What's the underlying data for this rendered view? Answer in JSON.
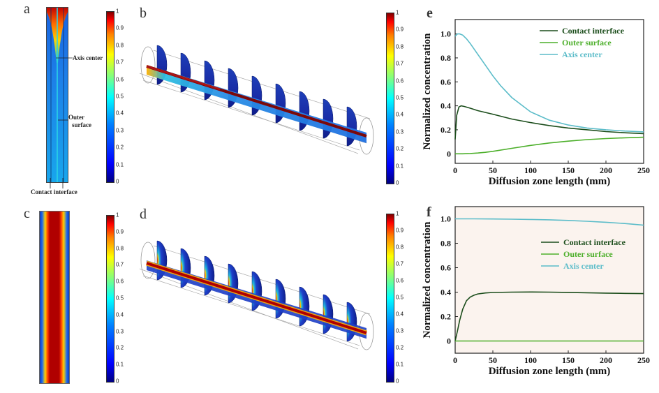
{
  "panels": {
    "a": {
      "letter": "a",
      "annotations": {
        "axis_center": "Axis center",
        "outer_surface_1": "Outer",
        "outer_surface_2": "surface",
        "contact_interface": "Contact interface"
      }
    },
    "b": {
      "letter": "b"
    },
    "c": {
      "letter": "c"
    },
    "d": {
      "letter": "d"
    },
    "e": {
      "letter": "e"
    },
    "f": {
      "letter": "f"
    }
  },
  "colorbar": {
    "ticks": [
      "0",
      "0.1",
      "0.2",
      "0.3",
      "0.4",
      "0.5",
      "0.6",
      "0.7",
      "0.8",
      "0.9",
      "1"
    ]
  },
  "colors": {
    "contact_interface": "#1b4d1b",
    "outer_surface": "#4caf2a",
    "axis_center": "#5bbcc9",
    "panel_f_background": "#fbf3ee"
  },
  "chart_data": [
    {
      "id": "e",
      "type": "line",
      "xlabel": "Diffusion zone length (mm)",
      "ylabel": "Normalized concentration",
      "xlim": [
        0,
        250
      ],
      "ylim": [
        -0.08,
        1.12
      ],
      "xticks": [
        "0",
        "50",
        "100",
        "150",
        "200",
        "250"
      ],
      "yticks": [
        "0",
        "0.2",
        "0.4",
        "0.6",
        "0.8",
        "1.0"
      ],
      "legend_position": "top-right",
      "series": [
        {
          "name": "Contact interface",
          "x": [
            0,
            2,
            5,
            8,
            12,
            20,
            30,
            50,
            75,
            100,
            125,
            150,
            175,
            200,
            225,
            250
          ],
          "y": [
            0.12,
            0.32,
            0.39,
            0.4,
            0.395,
            0.38,
            0.36,
            0.33,
            0.29,
            0.26,
            0.235,
            0.215,
            0.2,
            0.185,
            0.175,
            0.168
          ]
        },
        {
          "name": "Outer surface",
          "x": [
            0,
            10,
            20,
            30,
            40,
            50,
            75,
            100,
            125,
            150,
            175,
            200,
            225,
            250
          ],
          "y": [
            0,
            0.0,
            0.002,
            0.006,
            0.012,
            0.02,
            0.045,
            0.07,
            0.09,
            0.105,
            0.118,
            0.127,
            0.133,
            0.138
          ]
        },
        {
          "name": "Axis center",
          "x": [
            0,
            3,
            6,
            10,
            15,
            20,
            30,
            40,
            50,
            60,
            75,
            100,
            125,
            150,
            175,
            200,
            225,
            250
          ],
          "y": [
            0.98,
            1.0,
            1.0,
            0.99,
            0.96,
            0.92,
            0.83,
            0.74,
            0.65,
            0.57,
            0.47,
            0.35,
            0.28,
            0.24,
            0.215,
            0.2,
            0.19,
            0.183
          ]
        }
      ]
    },
    {
      "id": "f",
      "type": "line",
      "xlabel": "Diffusion zone length (mm)",
      "ylabel": "Normalized concentration",
      "xlim": [
        0,
        250
      ],
      "ylim": [
        -0.1,
        1.1
      ],
      "xticks": [
        "0",
        "50",
        "100",
        "150",
        "200",
        "250"
      ],
      "yticks": [
        "0",
        "0.2",
        "0.4",
        "0.6",
        "0.8",
        "1.0"
      ],
      "legend_position": "center-right",
      "series": [
        {
          "name": "Contact interface",
          "x": [
            0,
            3,
            6,
            10,
            15,
            20,
            25,
            30,
            40,
            50,
            75,
            100,
            125,
            150,
            175,
            200,
            225,
            250
          ],
          "y": [
            0.0,
            0.08,
            0.17,
            0.26,
            0.33,
            0.36,
            0.375,
            0.385,
            0.393,
            0.397,
            0.4,
            0.401,
            0.4,
            0.398,
            0.395,
            0.392,
            0.39,
            0.388
          ]
        },
        {
          "name": "Outer surface",
          "x": [
            0,
            50,
            100,
            150,
            200,
            250
          ],
          "y": [
            0,
            0,
            0,
            0,
            0,
            0
          ]
        },
        {
          "name": "Axis center",
          "x": [
            0,
            25,
            50,
            75,
            100,
            125,
            150,
            175,
            200,
            225,
            250
          ],
          "y": [
            1.0,
            1.0,
            0.999,
            0.997,
            0.995,
            0.992,
            0.987,
            0.98,
            0.972,
            0.962,
            0.948
          ]
        }
      ]
    }
  ]
}
